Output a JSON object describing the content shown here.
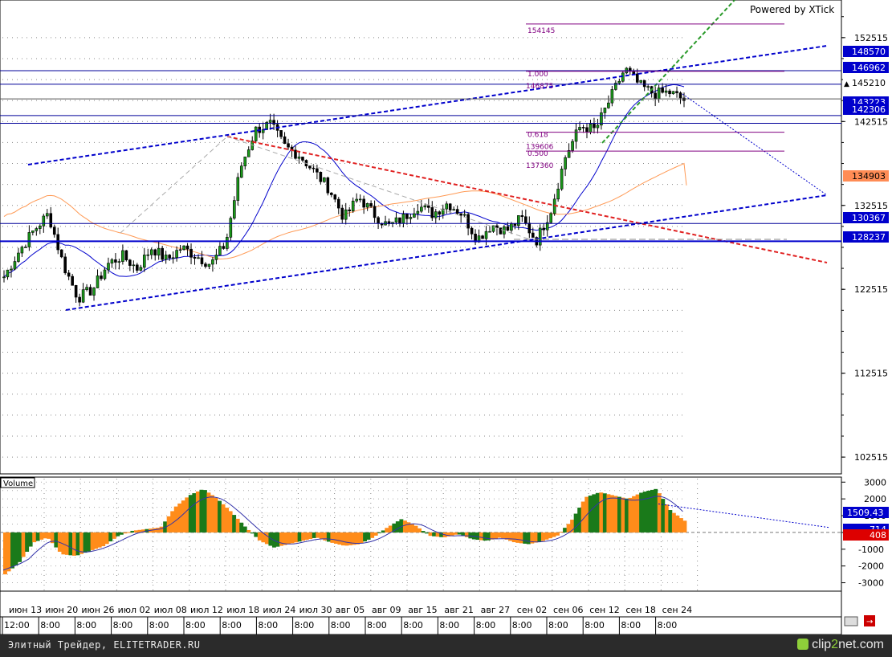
{
  "watermark": "Powered by XTick",
  "volume_label": "Volume",
  "footer": {
    "left_text": "Элитный Трейдер, ELITETRADER.RU",
    "logo_main": "clip",
    "logo_accent": "2",
    "logo_tail": "net.com"
  },
  "colors": {
    "up": "#1a7a1a",
    "down": "#ff8c1a",
    "blue": "#0000cc",
    "red": "#e02020",
    "green_dash": "#2a9a2a",
    "orange_ma": "#ff9a55",
    "fib": "#800080"
  },
  "chart_data": [
    {
      "type": "candlestick",
      "title": "",
      "ylim": [
        100515,
        157000
      ],
      "y_ticks": [
        "152515",
        "142515",
        "132515",
        "122515",
        "112515",
        "102515"
      ],
      "x_date_labels": [
        "июн 13",
        "июн 20",
        "июн 26",
        "июл 02",
        "июл 08",
        "июл 12",
        "июл 18",
        "июл 24",
        "июл 30",
        "авг 05",
        "авг 09",
        "авг 15",
        "авг 21",
        "авг 27",
        "сен 02",
        "сен 06",
        "сен 12",
        "сен 18",
        "сен 24"
      ],
      "x_time_labels": [
        "12:00",
        "8:00",
        "8:00",
        "8:00",
        "8:00",
        "8:00",
        "8:00",
        "8:00",
        "8:00",
        "8:00",
        "8:00",
        "8:00",
        "8:00",
        "8:00",
        "8:00",
        "8:00",
        "8:00",
        "8:00",
        "8:00"
      ],
      "price_path": [
        124000,
        127000,
        129500,
        131500,
        125500,
        121500,
        122500,
        125500,
        126500,
        125000,
        127500,
        126000,
        127500,
        126500,
        125500,
        128000,
        137000,
        141500,
        142200,
        139500,
        138500,
        136500,
        134500,
        131000,
        133500,
        131500,
        130000,
        131000,
        132500,
        131500,
        132800,
        131500,
        128500,
        130200,
        129500,
        131000,
        128300,
        132000,
        138500,
        142000,
        141500,
        145200,
        148800,
        146800,
        145800,
        146000,
        145100
      ],
      "candles": [],
      "labeled_levels": [
        {
          "value": 148570,
          "label": "148570",
          "style": "blue"
        },
        {
          "value": 146962,
          "label": "146962",
          "style": "blue"
        },
        {
          "value": 145210,
          "label": "145210",
          "style": "current"
        },
        {
          "value": 143223,
          "label": "143223",
          "style": "blue"
        },
        {
          "value": 142306,
          "label": "142306",
          "style": "blue"
        },
        {
          "value": 134903,
          "label": "134903",
          "style": "orange"
        },
        {
          "value": 130367,
          "label": "130367",
          "style": "blue"
        },
        {
          "value": 128237,
          "label": "128237",
          "style": "blue"
        }
      ],
      "fibonacci": [
        {
          "ratio": "1.000",
          "value": "146875"
        },
        {
          "ratio": "0.618",
          "value": "139606"
        },
        {
          "ratio": "0.500",
          "value": "137360"
        }
      ],
      "fib_top": "154145"
    },
    {
      "type": "histogram",
      "title": "Volume",
      "ylim": [
        -3500,
        3300
      ],
      "y_ticks": [
        "3000",
        "2000",
        "1000",
        "0",
        "-1000",
        "-2000",
        "-3000"
      ],
      "labels": [
        {
          "value": 1509.43,
          "label": "1509.43"
        },
        {
          "value": 714,
          "label": "714"
        },
        {
          "value": 408,
          "label": "408"
        }
      ],
      "values": [
        -2500,
        -1800,
        -600,
        -300,
        -1300,
        -1400,
        -1100,
        -800,
        -200,
        100,
        200,
        300,
        1500,
        2200,
        2600,
        2000,
        1200,
        300,
        -500,
        -900,
        -700,
        -500,
        -300,
        -600,
        -800,
        -700,
        -300,
        300,
        800,
        400,
        -200,
        -300,
        -100,
        -400,
        -500,
        -300,
        -600,
        -700,
        -500,
        -200,
        700,
        2100,
        2400,
        2200,
        2000,
        2400,
        2600,
        1300,
        700
      ]
    }
  ]
}
